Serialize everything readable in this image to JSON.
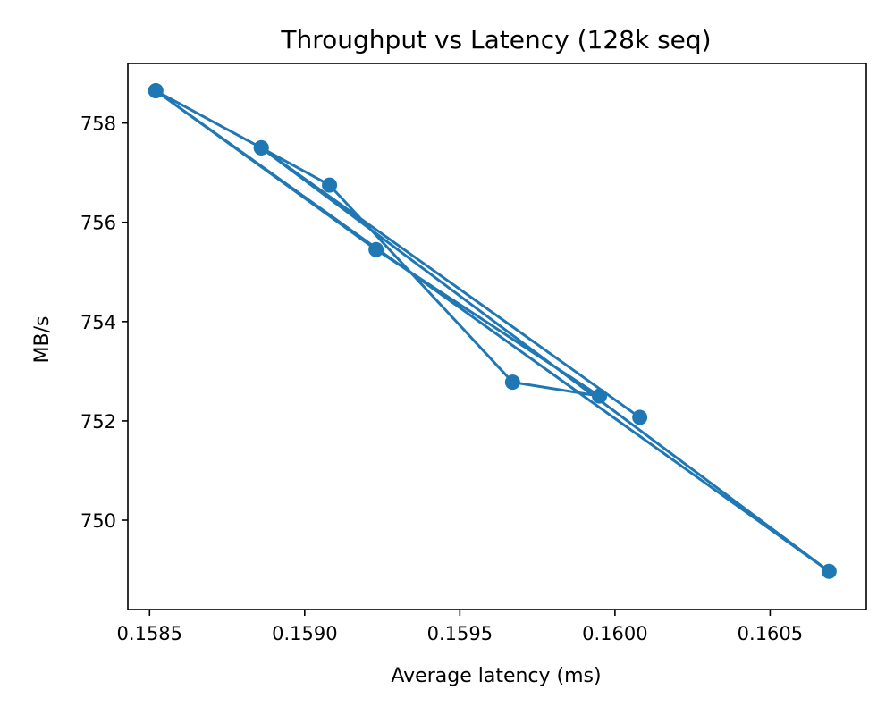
{
  "chart_data": {
    "type": "line",
    "title": "Throughput vs Latency (128k seq)",
    "xlabel": "Average latency (ms)",
    "ylabel": "MB/s",
    "xlim": [
      0.15843,
      0.16081
    ],
    "ylim": [
      748.2,
      759.2
    ],
    "xticks": [
      0.1585,
      0.159,
      0.1595,
      0.16,
      0.1605
    ],
    "xtick_labels": [
      "0.1585",
      "0.1590",
      "0.1595",
      "0.1600",
      "0.1605"
    ],
    "yticks": [
      750,
      752,
      754,
      756,
      758
    ],
    "ytick_labels": [
      "750",
      "752",
      "754",
      "756",
      "758"
    ],
    "grid": false,
    "legend": "none",
    "markers": true,
    "color": "#1f77b4",
    "series": [
      {
        "x": [
          0.15852,
          0.15886,
          0.15908,
          0.15967,
          0.15995,
          0.15923,
          0.15852,
          0.16069,
          0.15886,
          0.16008
        ],
        "y": [
          758.65,
          757.5,
          756.75,
          752.78,
          752.5,
          755.45,
          758.65,
          748.97,
          757.5,
          752.07
        ]
      }
    ]
  }
}
